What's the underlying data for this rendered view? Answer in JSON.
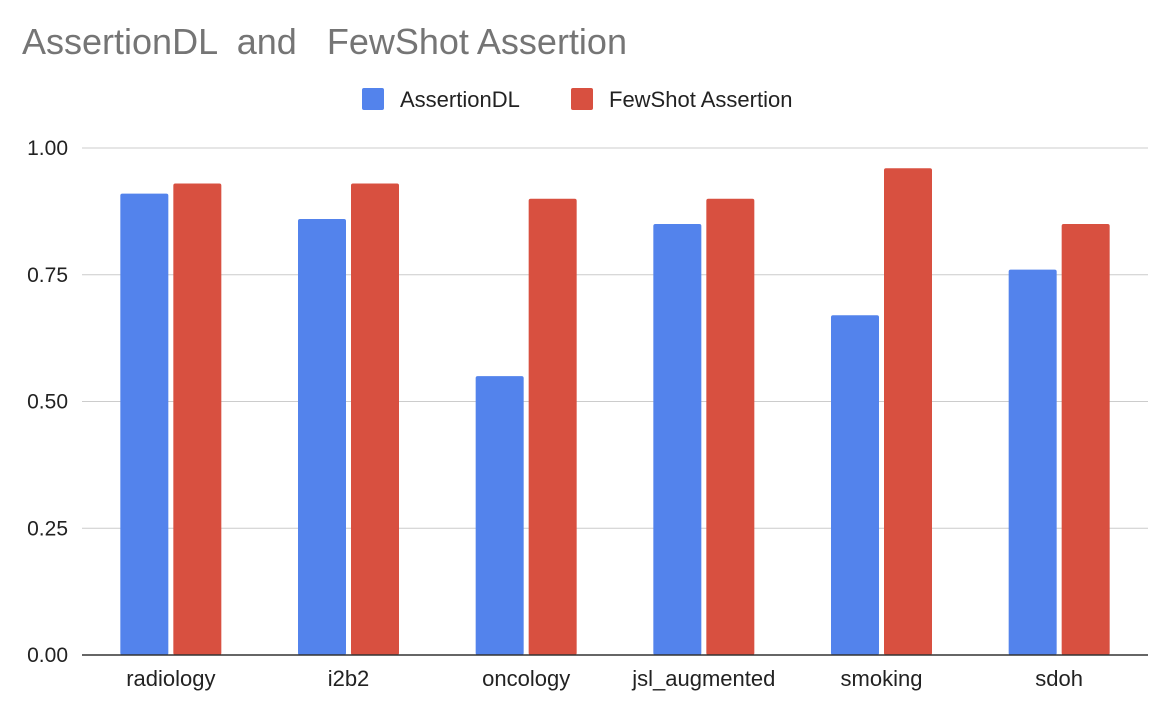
{
  "chart_data": {
    "type": "bar",
    "title": "AssertionDL  and   FewShot Assertion",
    "xlabel": "",
    "ylabel": "",
    "categories": [
      "radiology",
      "i2b2",
      "oncology",
      "jsl_augmented",
      "smoking",
      "sdoh"
    ],
    "series": [
      {
        "name": "AssertionDL",
        "color": "#5383EC",
        "values": [
          0.91,
          0.86,
          0.55,
          0.85,
          0.67,
          0.76
        ]
      },
      {
        "name": "FewShot Assertion",
        "color": "#D85040",
        "values": [
          0.93,
          0.93,
          0.9,
          0.9,
          0.96,
          0.85
        ]
      }
    ],
    "ylim": [
      0,
      1
    ],
    "yticks": [
      "0.00",
      "0.25",
      "0.50",
      "0.75",
      "1.00"
    ],
    "ytick_values": [
      0,
      0.25,
      0.5,
      0.75,
      1.0
    ],
    "grid": true,
    "legend_position": "top-center"
  }
}
